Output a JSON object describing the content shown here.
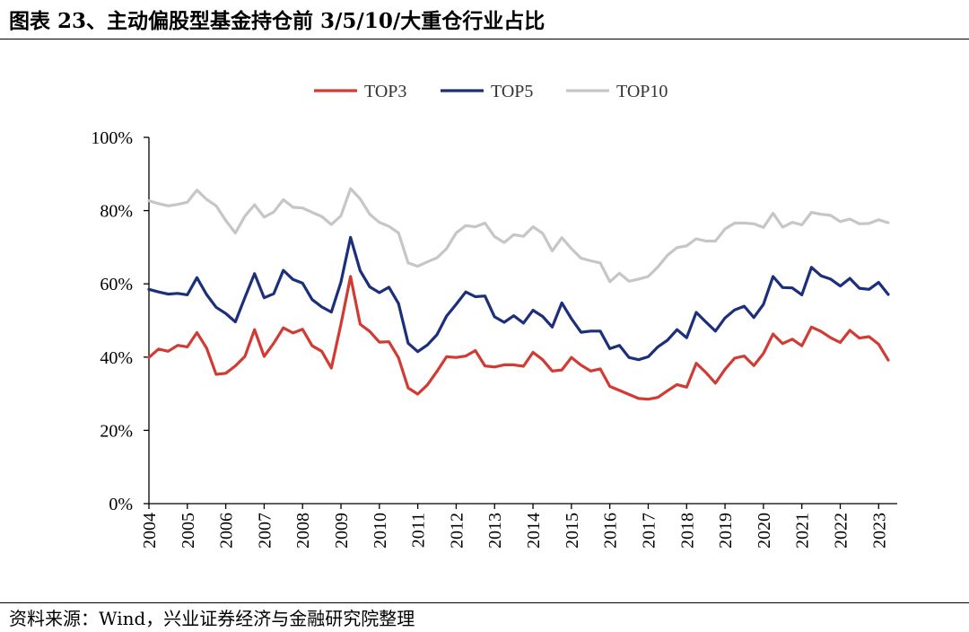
{
  "title": "图表 23、主动偏股型基金持仓前 3/5/10/大重仓行业占比",
  "source": "资料来源：Wind，兴业证券经济与金融研究院整理",
  "chart_data": {
    "type": "line",
    "title": "图表 23、主动偏股型基金持仓前 3/5/10/大重仓行业占比",
    "xlabel": "",
    "ylabel": "",
    "ylim": [
      0,
      100
    ],
    "yticks": [
      "0%",
      "20%",
      "40%",
      "60%",
      "80%",
      "100%"
    ],
    "xticks": [
      "2004",
      "2005",
      "2006",
      "2007",
      "2008",
      "2009",
      "2010",
      "2011",
      "2012",
      "2013",
      "2014",
      "2015",
      "2016",
      "2017",
      "2018",
      "2019",
      "2020",
      "2021",
      "2022",
      "2023"
    ],
    "x_start": 2004.0,
    "x_end": 2023.25,
    "x_step": 0.25,
    "legend_position": "top-center",
    "series": [
      {
        "name": "TOP3",
        "color": "#d13b33",
        "values": [
          39.9,
          42.2,
          41.6,
          43.2,
          42.8,
          46.7,
          42.5,
          35.3,
          35.6,
          37.6,
          40.2,
          47.5,
          40.2,
          43.8,
          48.0,
          46.6,
          47.6,
          43.1,
          41.6,
          37.0,
          49.0,
          62.0,
          49.0,
          47.0,
          44.1,
          44.2,
          39.8,
          31.6,
          29.9,
          32.4,
          36.1,
          40.1,
          39.9,
          40.3,
          41.8,
          37.6,
          37.3,
          37.9,
          37.9,
          37.5,
          41.3,
          39.3,
          36.2,
          36.5,
          39.9,
          37.8,
          36.2,
          36.8,
          32.0,
          30.9,
          29.8,
          28.7,
          28.5,
          29.0,
          30.8,
          32.5,
          31.8,
          38.3,
          35.8,
          32.9,
          36.7,
          39.7,
          40.3,
          37.7,
          41.0,
          46.3,
          43.7,
          44.9,
          43.1,
          48.2,
          47.0,
          45.3,
          44.0,
          47.3,
          45.2,
          45.6,
          43.5,
          39.2
        ]
      },
      {
        "name": "TOP5",
        "color": "#1c2f7a",
        "values": [
          58.5,
          57.8,
          57.2,
          57.4,
          57.0,
          61.7,
          57.1,
          53.6,
          51.9,
          49.6,
          56.3,
          62.8,
          56.2,
          57.3,
          63.7,
          61.2,
          60.2,
          55.7,
          53.7,
          52.3,
          60.5,
          72.7,
          63.6,
          59.2,
          57.6,
          59.1,
          54.6,
          43.8,
          41.5,
          43.3,
          46.1,
          51.2,
          54.4,
          57.8,
          56.5,
          56.7,
          51.0,
          49.5,
          51.3,
          49.3,
          52.8,
          51.1,
          48.2,
          54.8,
          50.5,
          46.8,
          47.1,
          47.1,
          42.3,
          43.2,
          39.9,
          39.3,
          40.1,
          42.8,
          44.6,
          47.5,
          45.3,
          52.2,
          49.6,
          47.1,
          50.7,
          52.9,
          53.9,
          50.8,
          54.4,
          62.0,
          59.0,
          58.9,
          57.0,
          64.5,
          62.2,
          61.3,
          59.4,
          61.5,
          58.8,
          58.5,
          60.4,
          57.1
        ]
      },
      {
        "name": "TOP10",
        "color": "#c6c6c6",
        "values": [
          82.7,
          81.9,
          81.3,
          81.7,
          82.3,
          85.6,
          83.1,
          81.3,
          77.3,
          73.9,
          78.5,
          81.6,
          78.2,
          79.6,
          83.0,
          80.9,
          80.7,
          79.5,
          78.4,
          76.2,
          78.6,
          86.0,
          83.2,
          79.0,
          76.8,
          75.7,
          73.9,
          65.7,
          64.8,
          66.0,
          67.1,
          69.6,
          73.9,
          75.9,
          75.6,
          76.6,
          72.9,
          71.3,
          73.4,
          73.0,
          75.6,
          73.8,
          69.0,
          72.6,
          69.6,
          67.0,
          66.3,
          65.7,
          60.6,
          62.9,
          60.7,
          61.3,
          62.0,
          64.6,
          67.8,
          69.9,
          70.4,
          72.3,
          71.7,
          71.7,
          75.0,
          76.6,
          76.6,
          76.4,
          75.4,
          79.3,
          75.5,
          76.8,
          76.1,
          79.5,
          79.0,
          78.7,
          77.0,
          77.7,
          76.4,
          76.5,
          77.5,
          76.7
        ]
      }
    ]
  }
}
